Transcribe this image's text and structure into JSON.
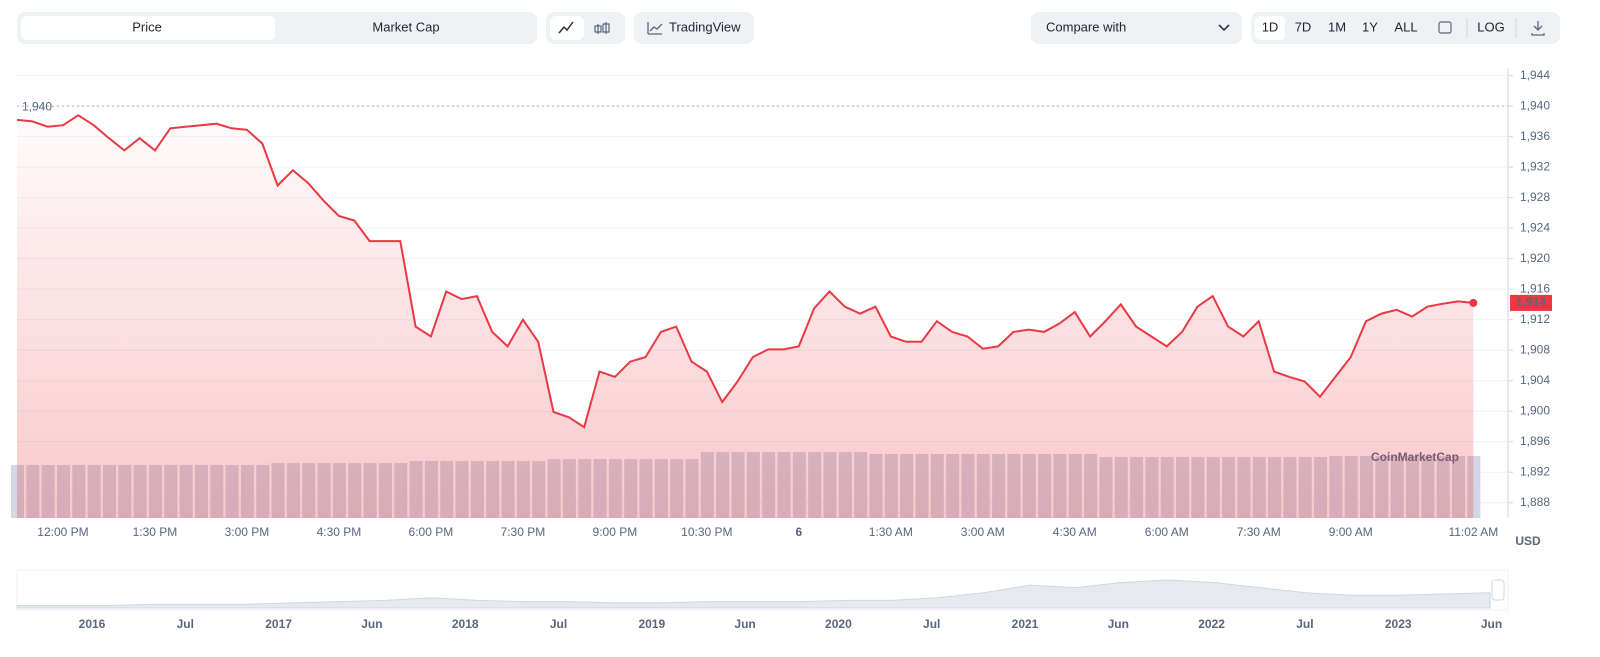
{
  "toolbar": {
    "tabs": [
      "Price",
      "Market Cap"
    ],
    "tradingview": "TradingView",
    "compare": "Compare with",
    "ranges": [
      "1D",
      "7D",
      "1M",
      "1Y",
      "ALL"
    ],
    "log": "LOG"
  },
  "chart_data": {
    "type": "line",
    "categories": [
      null,
      null,
      null,
      "12:00 PM",
      null,
      null,
      null,
      null,
      null,
      "1:30 PM",
      null,
      null,
      null,
      null,
      null,
      "3:00 PM",
      null,
      null,
      null,
      null,
      null,
      "4:30 PM",
      null,
      null,
      null,
      null,
      null,
      "6:00 PM",
      null,
      null,
      null,
      null,
      null,
      "7:30 PM",
      null,
      null,
      null,
      null,
      null,
      "9:00 PM",
      null,
      null,
      null,
      null,
      null,
      "10:30 PM",
      null,
      null,
      null,
      null,
      null,
      "6",
      null,
      null,
      null,
      null,
      null,
      "1:30 AM",
      null,
      null,
      null,
      null,
      null,
      "3:00 AM",
      null,
      null,
      null,
      null,
      null,
      "4:30 AM",
      null,
      null,
      null,
      null,
      null,
      "6:00 AM",
      null,
      null,
      null,
      null,
      null,
      "7:30 AM",
      null,
      null,
      null,
      null,
      null,
      "9:00 AM",
      null,
      null,
      null,
      null,
      null,
      null,
      null,
      "11:02 AM"
    ],
    "series": [
      {
        "name": "Price",
        "color": "#ea3943",
        "values": [
          1938.2,
          1938,
          1937.3,
          1937.5,
          1938.8,
          1937.5,
          1935.8,
          1934.2,
          1935.8,
          1934.2,
          1937.1,
          1937.3,
          1937.5,
          1937.7,
          1937.1,
          1936.9,
          1935.1,
          1929.6,
          1931.6,
          1929.9,
          1927.6,
          1925.6,
          1925,
          1922.3,
          1922.3,
          1922.3,
          1911.1,
          1909.8,
          1915.7,
          1914.7,
          1915.1,
          1910.4,
          1908.5,
          1912,
          1909.1,
          1899.9,
          1899.2,
          1897.9,
          1905.2,
          1904.5,
          1906.5,
          1907.1,
          1910.4,
          1911.1,
          1906.5,
          1905.2,
          1901.2,
          1903.9,
          1907.1,
          1908.1,
          1908.1,
          1908.5,
          1913.5,
          1915.7,
          1913.7,
          1912.8,
          1913.7,
          1909.8,
          1909.1,
          1909.1,
          1911.8,
          1910.4,
          1909.8,
          1908.2,
          1908.5,
          1910.4,
          1910.7,
          1910.4,
          1911.5,
          1913,
          1909.8,
          1911.8,
          1914,
          1911.1,
          1909.8,
          1908.5,
          1910.4,
          1913.7,
          1915.1,
          1911.1,
          1909.8,
          1911.8,
          1905.2,
          1904.5,
          1903.9,
          1901.9,
          1904.5,
          1907.1,
          1911.8,
          1912.8,
          1913.3,
          1912.4,
          1913.7,
          1914.1,
          1914.4,
          1914.2
        ],
        "value_labels": [
          null,
          null,
          null,
          null,
          null,
          null,
          null,
          null,
          null,
          null,
          null,
          null,
          null,
          null,
          null,
          null,
          null,
          null,
          null,
          null,
          null,
          null,
          null,
          null,
          null,
          null,
          null,
          null,
          null,
          null,
          null,
          null,
          null,
          null,
          null,
          null,
          null,
          null,
          null,
          null,
          null,
          null,
          null,
          null,
          null,
          null,
          null,
          null,
          null,
          null,
          null,
          null,
          null,
          null,
          null,
          null,
          null,
          null,
          null,
          null,
          null,
          null,
          null,
          null,
          null,
          null,
          null,
          null,
          null,
          null,
          null,
          null,
          null,
          null,
          null,
          null,
          null,
          null,
          null,
          null,
          null,
          null,
          null,
          null,
          null,
          null,
          null,
          null,
          null,
          null,
          null,
          null,
          null,
          null,
          null,
          "1,914"
        ]
      }
    ],
    "volume": [
      53,
      53,
      53,
      53,
      53,
      53,
      53,
      53,
      53,
      53,
      53,
      53,
      53,
      53,
      53,
      53,
      53,
      55,
      55,
      55,
      55,
      55,
      55,
      55,
      55,
      55,
      57,
      57,
      57,
      57,
      57,
      57,
      57,
      57,
      57,
      59,
      59,
      59,
      59,
      59,
      59,
      59,
      59,
      59,
      59,
      66,
      66,
      66,
      66,
      66,
      66,
      66,
      66,
      66,
      66,
      66,
      64,
      64,
      64,
      64,
      64,
      64,
      64,
      64,
      64,
      64,
      64,
      64,
      64,
      64,
      64,
      61,
      61,
      61,
      61,
      61,
      61,
      61,
      61,
      61,
      61,
      61,
      61,
      61,
      61,
      61,
      62,
      62,
      62,
      62,
      62,
      62,
      62,
      62,
      62,
      62
    ],
    "ylim": [
      1886,
      1945
    ],
    "yticks": [
      {
        "value": 1888,
        "label": "1,888"
      },
      {
        "value": 1892,
        "label": "1,892"
      },
      {
        "value": 1896,
        "label": "1,896"
      },
      {
        "value": 1900,
        "label": "1,900"
      },
      {
        "value": 1904,
        "label": "1,904"
      },
      {
        "value": 1908,
        "label": "1,908"
      },
      {
        "value": 1912,
        "label": "1,912"
      },
      {
        "value": 1916,
        "label": "1,916"
      },
      {
        "value": 1920,
        "label": "1,920"
      },
      {
        "value": 1924,
        "label": "1,924"
      },
      {
        "value": 1928,
        "label": "1,928"
      },
      {
        "value": 1932,
        "label": "1,932"
      },
      {
        "value": 1936,
        "label": "1,936"
      },
      {
        "value": 1940,
        "label": "1,940"
      },
      {
        "value": 1944,
        "label": "1,944"
      }
    ],
    "grid": true,
    "reference_line": {
      "value": 1940,
      "label": "1,940"
    },
    "y_unit": "USD",
    "watermark": "CoinMarketCap"
  },
  "navigator": {
    "labels": [
      "2016",
      "Jul",
      "2017",
      "Jun",
      "2018",
      "Jul",
      "2019",
      "Jun",
      "2020",
      "Jul",
      "2021",
      "Jun",
      "2022",
      "Jul",
      "2023",
      "Jun"
    ],
    "values": [
      2,
      2,
      2,
      3,
      3,
      3,
      4,
      5,
      6,
      8,
      6,
      5,
      5,
      4,
      4,
      5,
      5,
      5,
      6,
      6,
      8,
      12,
      18,
      16,
      20,
      22,
      20,
      16,
      12,
      10,
      10,
      11,
      12
    ]
  }
}
